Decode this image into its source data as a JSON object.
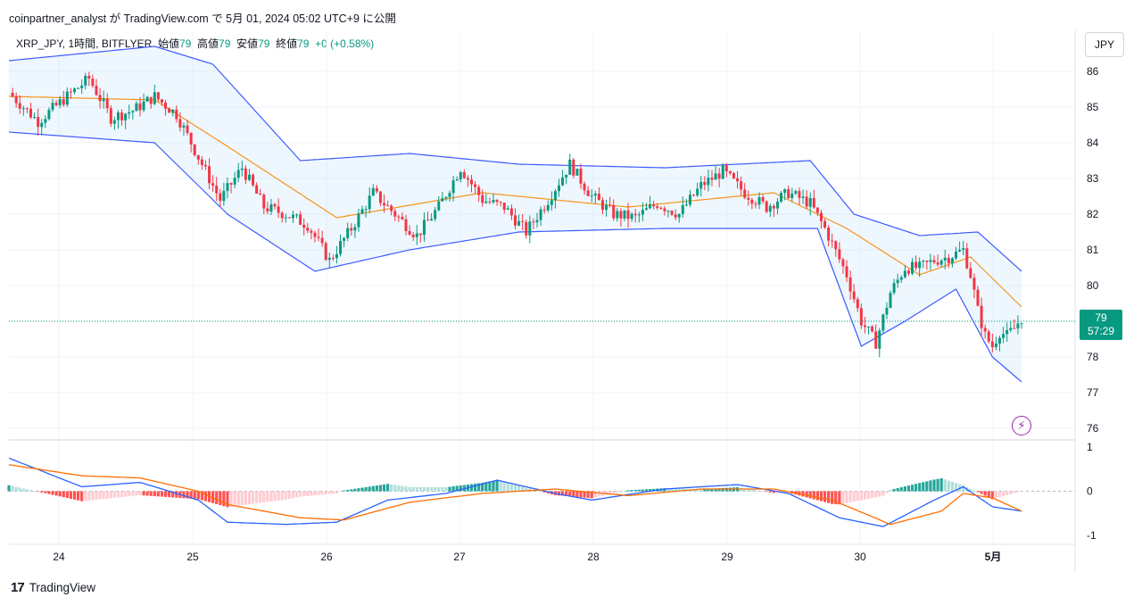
{
  "publication": "coinpartner_analyst が TradingView.com で 5月 01, 2024 05:02 UTC+9 に公開",
  "legend": {
    "symbol": "XRP_JPY, 1時間, BITFLYER",
    "open_label": "始値",
    "open": "79",
    "high_label": "高値",
    "high": "79",
    "low_label": "安値",
    "low": "79",
    "close_label": "終値",
    "close": "79",
    "change": "+0 (+0.58%)"
  },
  "currency_button": "JPY",
  "price_tag": {
    "price": "79",
    "countdown": "57:29"
  },
  "brand": "TradingView",
  "colors": {
    "up": "#089981",
    "down": "#f23645",
    "basis": "#f7931a",
    "bands": "#3d5afe",
    "macd": "#2962ff",
    "signal": "#ff6d00"
  },
  "chart_data": [
    {
      "type": "candlestick",
      "title": "",
      "x_tick_labels": [
        "24",
        "25",
        "26",
        "27",
        "28",
        "29",
        "30",
        "5月"
      ],
      "y_tick_labels": [
        "86",
        "85",
        "84",
        "83",
        "82",
        "81",
        "80",
        "79",
        "78",
        "77",
        "76"
      ],
      "ylim": [
        75.7,
        86.5
      ],
      "last_price": 79,
      "indicators": [
        "Bollinger Bands"
      ],
      "close_path": [
        [
          0,
          85.4
        ],
        [
          8,
          84.6
        ],
        [
          16,
          85.3
        ],
        [
          22,
          85.8
        ],
        [
          28,
          84.7
        ],
        [
          34,
          84.9
        ],
        [
          40,
          85.3
        ],
        [
          46,
          84.8
        ],
        [
          52,
          83.6
        ],
        [
          58,
          82.4
        ],
        [
          64,
          83.3
        ],
        [
          70,
          82.2
        ],
        [
          76,
          82.0
        ],
        [
          82,
          81.7
        ],
        [
          88,
          80.7
        ],
        [
          94,
          81.6
        ],
        [
          100,
          82.6
        ],
        [
          106,
          82.0
        ],
        [
          112,
          81.4
        ],
        [
          118,
          82.2
        ],
        [
          124,
          83.3
        ],
        [
          130,
          82.4
        ],
        [
          136,
          82.2
        ],
        [
          142,
          81.5
        ],
        [
          148,
          82.4
        ],
        [
          154,
          83.4
        ],
        [
          160,
          82.5
        ],
        [
          166,
          82.0
        ],
        [
          172,
          81.9
        ],
        [
          178,
          82.3
        ],
        [
          184,
          82.0
        ],
        [
          190,
          82.8
        ],
        [
          196,
          83.2
        ],
        [
          202,
          82.6
        ],
        [
          208,
          82.2
        ],
        [
          214,
          82.6
        ],
        [
          220,
          82.3
        ],
        [
          224,
          81.6
        ],
        [
          230,
          80.3
        ],
        [
          234,
          79.0
        ],
        [
          238,
          78.4
        ],
        [
          242,
          79.8
        ],
        [
          246,
          80.5
        ],
        [
          250,
          80.5
        ],
        [
          254,
          80.7
        ],
        [
          258,
          80.8
        ],
        [
          262,
          81.0
        ],
        [
          264,
          80.3
        ],
        [
          266,
          79.3
        ],
        [
          268,
          78.6
        ],
        [
          270,
          78.3
        ],
        [
          272,
          78.7
        ],
        [
          274,
          78.6
        ],
        [
          276,
          78.8
        ],
        [
          278,
          79.1
        ]
      ],
      "bollinger_basis": [
        [
          0,
          85.3
        ],
        [
          40,
          85.2
        ],
        [
          60,
          83.9
        ],
        [
          90,
          81.9
        ],
        [
          130,
          82.6
        ],
        [
          170,
          82.2
        ],
        [
          210,
          82.6
        ],
        [
          230,
          81.6
        ],
        [
          250,
          80.3
        ],
        [
          264,
          80.8
        ],
        [
          278,
          79.4
        ]
      ],
      "bollinger_upper": [
        [
          0,
          86.3
        ],
        [
          40,
          86.7
        ],
        [
          56,
          86.2
        ],
        [
          80,
          83.5
        ],
        [
          110,
          83.7
        ],
        [
          140,
          83.4
        ],
        [
          180,
          83.3
        ],
        [
          220,
          83.5
        ],
        [
          232,
          82.0
        ],
        [
          250,
          81.4
        ],
        [
          266,
          81.5
        ],
        [
          278,
          80.4
        ]
      ],
      "bollinger_lower": [
        [
          0,
          84.3
        ],
        [
          40,
          84.0
        ],
        [
          60,
          82.0
        ],
        [
          84,
          80.4
        ],
        [
          110,
          81.0
        ],
        [
          140,
          81.5
        ],
        [
          180,
          81.6
        ],
        [
          222,
          81.6
        ],
        [
          234,
          78.3
        ],
        [
          246,
          79.0
        ],
        [
          260,
          79.9
        ],
        [
          270,
          78.0
        ],
        [
          278,
          77.3
        ]
      ]
    },
    {
      "type": "line",
      "title": "",
      "y_tick_labels": [
        "1",
        "0",
        "-1"
      ],
      "ylim": [
        -1.1,
        1.1
      ],
      "indicators": [
        "MACD",
        "Signal",
        "Histogram"
      ],
      "macd": [
        [
          0,
          0.75
        ],
        [
          20,
          0.1
        ],
        [
          36,
          0.2
        ],
        [
          52,
          -0.2
        ],
        [
          60,
          -0.7
        ],
        [
          76,
          -0.75
        ],
        [
          90,
          -0.7
        ],
        [
          104,
          -0.2
        ],
        [
          120,
          -0.05
        ],
        [
          134,
          0.25
        ],
        [
          150,
          -0.05
        ],
        [
          160,
          -0.2
        ],
        [
          180,
          0.05
        ],
        [
          200,
          0.15
        ],
        [
          214,
          -0.05
        ],
        [
          228,
          -0.6
        ],
        [
          240,
          -0.8
        ],
        [
          254,
          -0.2
        ],
        [
          262,
          0.1
        ],
        [
          270,
          -0.35
        ],
        [
          278,
          -0.45
        ]
      ],
      "signal": [
        [
          0,
          0.6
        ],
        [
          20,
          0.35
        ],
        [
          36,
          0.3
        ],
        [
          52,
          0.0
        ],
        [
          60,
          -0.3
        ],
        [
          80,
          -0.6
        ],
        [
          92,
          -0.65
        ],
        [
          110,
          -0.25
        ],
        [
          130,
          -0.05
        ],
        [
          150,
          0.05
        ],
        [
          170,
          -0.1
        ],
        [
          190,
          0.05
        ],
        [
          210,
          0.05
        ],
        [
          226,
          -0.2
        ],
        [
          242,
          -0.75
        ],
        [
          256,
          -0.45
        ],
        [
          262,
          -0.05
        ],
        [
          270,
          -0.15
        ],
        [
          278,
          -0.45
        ]
      ]
    }
  ]
}
